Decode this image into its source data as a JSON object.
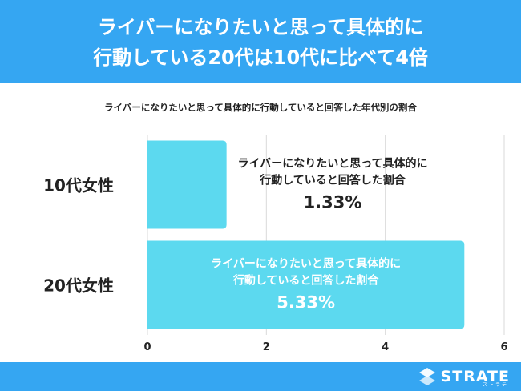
{
  "header": {
    "title_line1": "ライバーになりたいと思って具体的に",
    "title_line2": "行動している20代は10代に比べて4倍"
  },
  "subtitle": "ライバーになりたいと思って具体的に行動していると回答した年代別の割合",
  "colors": {
    "header_bg": "#35a6f2",
    "bar": "#5cd9ef",
    "grid": "#d9d9d9",
    "text": "#222222"
  },
  "chart_data": {
    "type": "bar",
    "orientation": "horizontal",
    "categories": [
      "10代女性",
      "20代女性"
    ],
    "values": [
      1.33,
      5.33
    ],
    "xlim": [
      0,
      6
    ],
    "xticks": [
      "0",
      "2",
      "4",
      "6"
    ],
    "grid": true,
    "bar_labels": [
      {
        "line1": "ライバーになりたいと思って具体的に",
        "line2": "行動していると回答した割合",
        "value": "1.33%"
      },
      {
        "line1": "ライバーになりたいと思って具体的に",
        "line2": "行動していると回答した割合",
        "value": "5.33%"
      }
    ]
  },
  "footer": {
    "logo_text": "STRATE",
    "logo_sub": "ストラテ",
    "logo_icon": "strate-logo-icon"
  }
}
